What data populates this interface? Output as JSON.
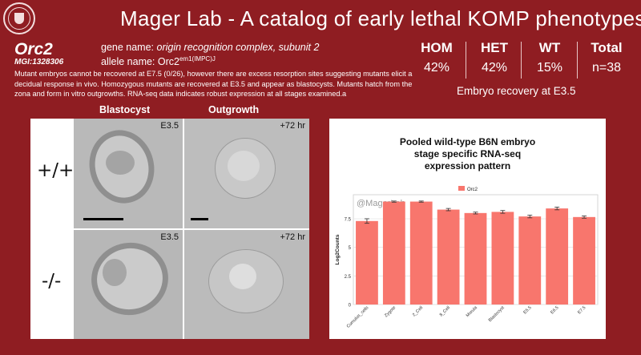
{
  "header": {
    "title": "Mager Lab - A catalog of early lethal KOMP phenotypes"
  },
  "gene": {
    "symbol": "Orc2",
    "mgi": "MGI:1328306",
    "gene_name_label": "gene name:",
    "gene_name": "origin recognition complex, subunit 2",
    "allele_name_label": "allele name:",
    "allele_base": "Orc2",
    "allele_sup": "em1(IMPC)J"
  },
  "description": "Mutant embryos cannot be recovered at E7.5 (0/26), however there are excess resorption sites suggesting mutants elicit a decidual response in vivo. Homozygous mutants are recovered at E3.5 and appear as blastocysts. Mutants hatch from the zona and form in vitro outgrowths. RNA-seq data indicates robust expression at all stages examined.a",
  "stats": {
    "columns": [
      {
        "head": "HOM",
        "value": "42%"
      },
      {
        "head": "HET",
        "value": "42%"
      },
      {
        "head": "WT",
        "value": "15%"
      },
      {
        "head": "Total",
        "value": "n=38"
      }
    ],
    "caption": "Embryo recovery at E3.5"
  },
  "images": {
    "col_blastocyst": "Blastocyst",
    "col_outgrowth": "Outgrowth",
    "row_wt": "+/+",
    "row_mut": "-/-",
    "panels": {
      "wt_blast": "E3.5",
      "wt_out": "+72 hr",
      "mut_blast": "E3.5",
      "mut_out": "+72 hr"
    }
  },
  "chart_data": {
    "type": "bar",
    "title": "Pooled wild-type B6N embryo stage specific RNA-seq expression pattern",
    "title_lines": [
      "Pooled wild-type B6N embryo",
      "stage specific RNA-seq",
      "expression pattern"
    ],
    "watermark": "@MagerLab",
    "legend": "Orc2",
    "legend_position": "top-center",
    "ylabel": "Log2Counts",
    "xlabel": "",
    "categories": [
      "Cumulus_cells",
      "Zygote",
      "2_Cell",
      "8_Cell",
      "Morula",
      "Blastocyst",
      "E5.5",
      "E6.5",
      "E7.5"
    ],
    "values": [
      7.3,
      9.0,
      9.0,
      8.3,
      8.0,
      8.1,
      7.7,
      8.4,
      7.65
    ],
    "errors": [
      0.2,
      0.05,
      0.05,
      0.1,
      0.08,
      0.12,
      0.12,
      0.12,
      0.1
    ],
    "yticks": [
      0,
      2.5,
      5,
      7.5
    ],
    "ylim": [
      0,
      9.6
    ],
    "grid": true,
    "bar_color": "#f8766d"
  }
}
